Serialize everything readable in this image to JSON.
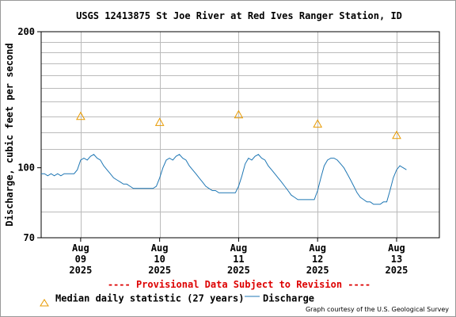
{
  "chart_data": {
    "type": "line",
    "title": "USGS 12413875 St Joe River at Red Ives Ranger Station, ID",
    "ylabel": "Discharge, cubic feet per second",
    "xlabel": "",
    "y_scale": "log",
    "ylim": [
      70,
      200
    ],
    "y_tick_labels": [
      "70",
      "100",
      "200"
    ],
    "y_minor_ticks": [
      80,
      90,
      110,
      120,
      130,
      140,
      150,
      160,
      170,
      180,
      190
    ],
    "xlim": [
      "2025-08-08 12:00",
      "2025-08-13 13:00"
    ],
    "x_ticks": [
      {
        "date": "2025-08-09 00:00",
        "l1": "Aug",
        "l2": "09",
        "l3": "2025"
      },
      {
        "date": "2025-08-10 00:00",
        "l1": "Aug",
        "l2": "10",
        "l3": "2025"
      },
      {
        "date": "2025-08-11 00:00",
        "l1": "Aug",
        "l2": "11",
        "l3": "2025"
      },
      {
        "date": "2025-08-12 00:00",
        "l1": "Aug",
        "l2": "12",
        "l3": "2025"
      },
      {
        "date": "2025-08-13 00:00",
        "l1": "Aug",
        "l2": "13",
        "l3": "2025"
      }
    ],
    "grid": true,
    "series": [
      {
        "name": "Discharge",
        "color": "#1f77b4",
        "x": [
          "2025-08-08 12:00",
          "2025-08-08 13:00",
          "2025-08-08 14:00",
          "2025-08-08 15:00",
          "2025-08-08 16:00",
          "2025-08-08 17:00",
          "2025-08-08 18:00",
          "2025-08-08 19:00",
          "2025-08-08 20:00",
          "2025-08-08 21:00",
          "2025-08-08 22:00",
          "2025-08-08 23:00",
          "2025-08-09 00:00",
          "2025-08-09 01:00",
          "2025-08-09 02:00",
          "2025-08-09 03:00",
          "2025-08-09 04:00",
          "2025-08-09 05:00",
          "2025-08-09 06:00",
          "2025-08-09 07:00",
          "2025-08-09 08:00",
          "2025-08-09 09:00",
          "2025-08-09 10:00",
          "2025-08-09 11:00",
          "2025-08-09 12:00",
          "2025-08-09 13:00",
          "2025-08-09 14:00",
          "2025-08-09 15:00",
          "2025-08-09 16:00",
          "2025-08-09 17:00",
          "2025-08-09 18:00",
          "2025-08-09 19:00",
          "2025-08-09 20:00",
          "2025-08-09 21:00",
          "2025-08-09 22:00",
          "2025-08-09 23:00",
          "2025-08-10 00:00",
          "2025-08-10 01:00",
          "2025-08-10 02:00",
          "2025-08-10 03:00",
          "2025-08-10 04:00",
          "2025-08-10 05:00",
          "2025-08-10 06:00",
          "2025-08-10 07:00",
          "2025-08-10 08:00",
          "2025-08-10 09:00",
          "2025-08-10 10:00",
          "2025-08-10 11:00",
          "2025-08-10 12:00",
          "2025-08-10 13:00",
          "2025-08-10 14:00",
          "2025-08-10 15:00",
          "2025-08-10 16:00",
          "2025-08-10 17:00",
          "2025-08-10 18:00",
          "2025-08-10 19:00",
          "2025-08-10 20:00",
          "2025-08-10 21:00",
          "2025-08-10 22:00",
          "2025-08-10 23:00",
          "2025-08-11 00:00",
          "2025-08-11 01:00",
          "2025-08-11 02:00",
          "2025-08-11 03:00",
          "2025-08-11 04:00",
          "2025-08-11 05:00",
          "2025-08-11 06:00",
          "2025-08-11 07:00",
          "2025-08-11 08:00",
          "2025-08-11 09:00",
          "2025-08-11 10:00",
          "2025-08-11 11:00",
          "2025-08-11 12:00",
          "2025-08-11 13:00",
          "2025-08-11 14:00",
          "2025-08-11 15:00",
          "2025-08-11 16:00",
          "2025-08-11 17:00",
          "2025-08-11 18:00",
          "2025-08-11 19:00",
          "2025-08-11 20:00",
          "2025-08-11 21:00",
          "2025-08-11 22:00",
          "2025-08-11 23:00",
          "2025-08-12 00:00",
          "2025-08-12 01:00",
          "2025-08-12 02:00",
          "2025-08-12 03:00",
          "2025-08-12 04:00",
          "2025-08-12 05:00",
          "2025-08-12 06:00",
          "2025-08-12 07:00",
          "2025-08-12 08:00",
          "2025-08-12 09:00",
          "2025-08-12 10:00",
          "2025-08-12 11:00",
          "2025-08-12 12:00",
          "2025-08-12 13:00",
          "2025-08-12 14:00",
          "2025-08-12 15:00",
          "2025-08-12 16:00",
          "2025-08-12 17:00",
          "2025-08-12 18:00",
          "2025-08-12 19:00",
          "2025-08-12 20:00",
          "2025-08-12 21:00",
          "2025-08-12 22:00",
          "2025-08-12 23:00",
          "2025-08-13 00:00",
          "2025-08-13 01:00",
          "2025-08-13 02:00",
          "2025-08-13 03:00"
        ],
        "values": [
          97,
          97,
          96,
          97,
          96,
          97,
          96,
          97,
          97,
          97,
          97,
          99,
          104,
          105,
          104,
          106,
          107,
          105,
          104,
          101,
          99,
          97,
          95,
          94,
          93,
          92,
          92,
          91,
          90,
          90,
          90,
          90,
          90,
          90,
          90,
          91,
          95,
          100,
          104,
          105,
          104,
          106,
          107,
          105,
          104,
          101,
          99,
          97,
          95,
          93,
          91,
          90,
          89,
          89,
          88,
          88,
          88,
          88,
          88,
          88,
          91,
          96,
          102,
          105,
          104,
          106,
          107,
          105,
          104,
          101,
          99,
          97,
          95,
          93,
          91,
          89,
          87,
          86,
          85,
          85,
          85,
          85,
          85,
          85,
          89,
          95,
          101,
          104,
          105,
          105,
          104,
          102,
          100,
          97,
          94,
          91,
          88,
          86,
          85,
          84,
          84,
          83,
          83,
          83,
          84,
          84,
          89,
          95,
          99,
          101,
          100,
          99
        ]
      }
    ],
    "median_points": {
      "name": "Median daily statistic (27 years)",
      "color": "#e89a00",
      "x": [
        "2025-08-09 00:00",
        "2025-08-10 00:00",
        "2025-08-11 00:00",
        "2025-08-12 00:00",
        "2025-08-13 00:00"
      ],
      "values": [
        130,
        126,
        131,
        125,
        118
      ]
    },
    "legend": [
      "Median daily statistic (27 years)",
      "Discharge"
    ],
    "legend_position": "bottom",
    "provisional_note": "---- Provisional Data Subject to Revision ----",
    "credit": "Graph courtesy of the U.S. Geological Survey"
  }
}
